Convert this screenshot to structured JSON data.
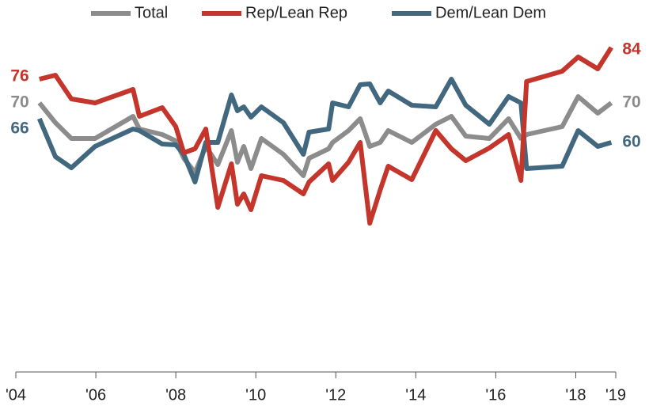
{
  "chart_data": {
    "type": "line",
    "x": [
      2004.59,
      2004.99,
      2005.39,
      2005.98,
      2006.93,
      2007.09,
      2007.66,
      2008.0,
      2008.2,
      2008.48,
      2008.75,
      2009.05,
      2009.39,
      2009.54,
      2009.7,
      2009.88,
      2010.14,
      2010.69,
      2011.19,
      2011.33,
      2011.82,
      2011.92,
      2012.32,
      2012.61,
      2012.85,
      2013.11,
      2013.31,
      2013.9,
      2014.5,
      2014.89,
      2015.25,
      2015.84,
      2016.32,
      2016.63,
      2016.77,
      2017.66,
      2018.06,
      2018.55,
      2018.89
    ],
    "series": [
      {
        "name": "Total",
        "color": "#8c8c8c",
        "values": [
          70,
          65,
          61,
          61,
          66.6,
          63.4,
          62,
          60.4,
          56,
          52.4,
          59,
          54.4,
          63,
          55,
          59,
          53.4,
          61,
          57,
          51.6,
          56,
          58.4,
          60,
          63,
          66,
          59,
          60,
          63,
          60,
          64.6,
          66.6,
          61.6,
          61,
          66,
          61,
          62,
          64,
          71.6,
          67.4,
          70
        ]
      },
      {
        "name": "Rep/Lean Rep",
        "color": "#c4352b",
        "values": [
          76,
          77,
          71,
          70,
          73.4,
          66.6,
          68.8,
          64,
          57.4,
          58.4,
          63.4,
          43.6,
          54.6,
          44.4,
          47,
          43,
          51.6,
          50.4,
          47,
          50,
          54.6,
          50.4,
          55,
          60,
          39.6,
          48,
          54,
          50.6,
          63,
          58.4,
          55.4,
          58.6,
          62,
          50.4,
          75.4,
          78,
          81.6,
          78.6,
          84
        ]
      },
      {
        "name": "Dem/Lean Dem",
        "color": "#41687f",
        "values": [
          66,
          56.4,
          53.6,
          59,
          63.4,
          63,
          59.6,
          59.4,
          57,
          50,
          60,
          60,
          72,
          68,
          69,
          66.4,
          69,
          65,
          57,
          62.6,
          63.4,
          70,
          69,
          74.6,
          74.8,
          70,
          73,
          69.4,
          69,
          76,
          69.4,
          64.6,
          71.6,
          70,
          53.4,
          54,
          63,
          59,
          60
        ]
      }
    ],
    "xlim": [
      2004,
      2019
    ],
    "xticks": [
      {
        "value": 2004,
        "label": "'04"
      },
      {
        "value": 2006,
        "label": "'06"
      },
      {
        "value": 2008,
        "label": "'08"
      },
      {
        "value": 2010,
        "label": "'10"
      },
      {
        "value": 2012,
        "label": "'12"
      },
      {
        "value": 2014,
        "label": "'14"
      },
      {
        "value": 2016,
        "label": "'16"
      },
      {
        "value": 2018,
        "label": "'18"
      },
      {
        "value": 2019,
        "label": "'19"
      }
    ],
    "ylim": [
      0,
      90
    ],
    "legend": "top"
  }
}
